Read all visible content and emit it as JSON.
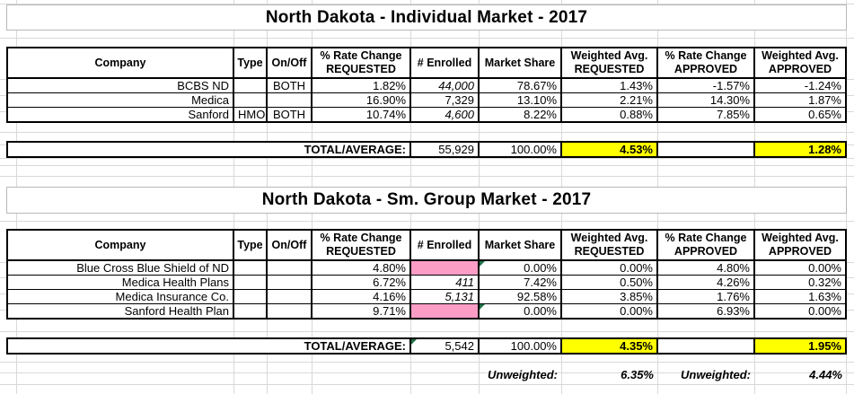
{
  "colors": {
    "highlight": "#ffff00",
    "pink": "#fc9dc6",
    "triangle": "#1f7246",
    "grid": "#d9d9d9"
  },
  "headers": {
    "company": "Company",
    "type": "Type",
    "onoff": "On/Off",
    "req": [
      "% Rate Change",
      "REQUESTED"
    ],
    "enrolled": "# Enrolled",
    "share": "Market Share",
    "wreq": [
      "Weighted Avg.",
      "REQUESTED"
    ],
    "app": [
      "% Rate Change",
      "APPROVED"
    ],
    "wapp": [
      "Weighted Avg.",
      "APPROVED"
    ]
  },
  "individual": {
    "title": "North Dakota - Individual Market - 2017",
    "rows": [
      {
        "company": "BCBS ND",
        "type": "",
        "onoff": "BOTH",
        "req": "1.82%",
        "enrolled": "44,000",
        "share": "78.67%",
        "wreq": "1.43%",
        "app": "-1.57%",
        "wapp": "-1.24%"
      },
      {
        "company": "Medica",
        "type": "",
        "onoff": "",
        "req": "16.90%",
        "enrolled": "7,329",
        "share": "13.10%",
        "wreq": "2.21%",
        "app": "14.30%",
        "wapp": "1.87%"
      },
      {
        "company": "Sanford",
        "type": "HMO",
        "onoff": "BOTH",
        "req": "10.74%",
        "enrolled": "4,600",
        "share": "8.22%",
        "wreq": "0.88%",
        "app": "7.85%",
        "wapp": "0.65%"
      }
    ],
    "total": {
      "label": "TOTAL/AVERAGE:",
      "enrolled": "55,929",
      "share": "100.00%",
      "wreq": "4.53%",
      "app": "",
      "wapp": "1.28%"
    }
  },
  "smgroup": {
    "title": "North Dakota - Sm. Group Market - 2017",
    "rows": [
      {
        "company": "Blue Cross Blue Shield of ND",
        "type": "",
        "onoff": "",
        "req": "4.80%",
        "enrolled": "",
        "share": "0.00%",
        "wreq": "0.00%",
        "app": "4.80%",
        "wapp": "0.00%"
      },
      {
        "company": "Medica Health Plans",
        "type": "",
        "onoff": "",
        "req": "6.72%",
        "enrolled": "411",
        "share": "7.42%",
        "wreq": "0.50%",
        "app": "4.26%",
        "wapp": "0.32%"
      },
      {
        "company": "Medica Insurance Co.",
        "type": "",
        "onoff": "",
        "req": "4.16%",
        "enrolled": "5,131",
        "share": "92.58%",
        "wreq": "3.85%",
        "app": "1.76%",
        "wapp": "1.63%"
      },
      {
        "company": "Sanford Health Plan",
        "type": "",
        "onoff": "",
        "req": "9.71%",
        "enrolled": "",
        "share": "0.00%",
        "wreq": "0.00%",
        "app": "6.93%",
        "wapp": "0.00%"
      }
    ],
    "total": {
      "label": "TOTAL/AVERAGE:",
      "enrolled": "5,542",
      "share": "100.00%",
      "wreq": "4.35%",
      "app": "",
      "wapp": "1.95%"
    },
    "unweighted": {
      "label1": "Unweighted:",
      "value1": "6.35%",
      "label2": "Unweighted:",
      "value2": "4.44%"
    }
  }
}
